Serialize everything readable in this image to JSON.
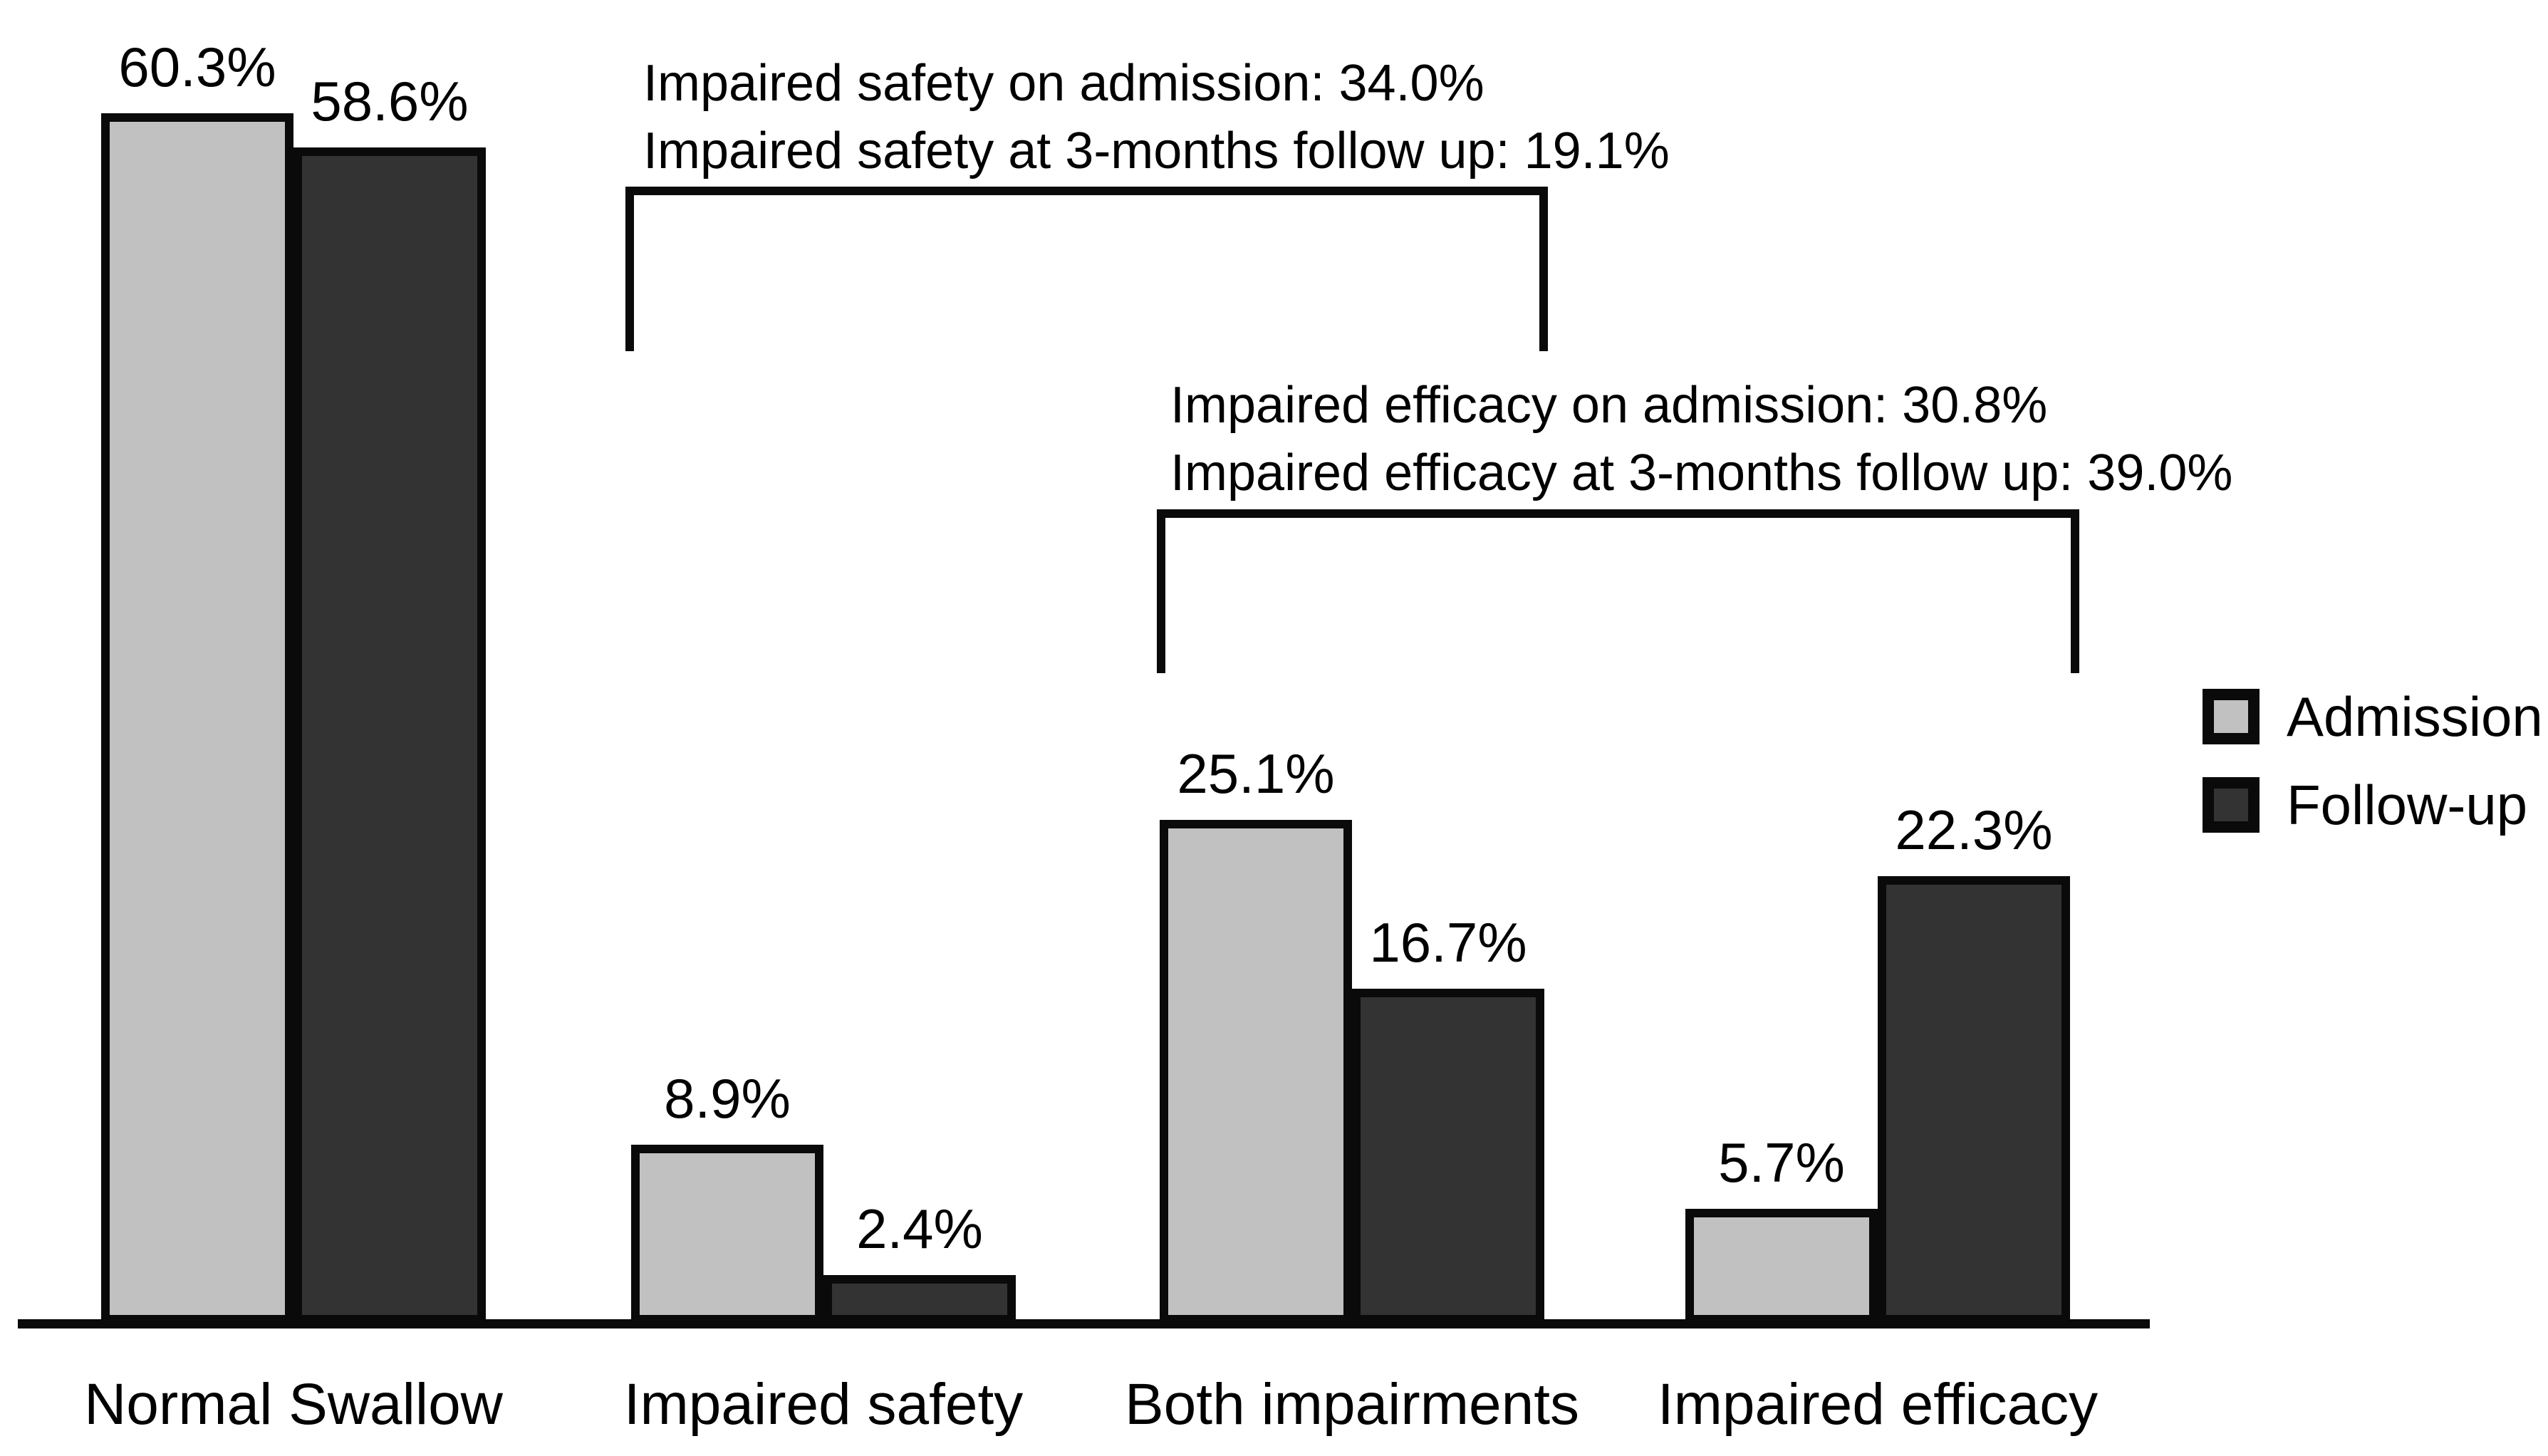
{
  "chart_data": {
    "type": "bar",
    "title": "",
    "xlabel": "",
    "ylabel": "",
    "ylim": [
      0,
      65
    ],
    "grid": false,
    "unit": "%",
    "legend_position": "right",
    "categories": [
      "Normal Swallow",
      "Impaired safety",
      "Both impairments",
      "Impaired efficacy"
    ],
    "series": [
      {
        "name": "Admission",
        "color": "#c1c1c1",
        "values": [
          60.3,
          8.9,
          25.1,
          5.7
        ],
        "labels": [
          "60.3%",
          "8.9%",
          "25.1%",
          "5.7%"
        ]
      },
      {
        "name": "Follow-up",
        "color": "#333333",
        "values": [
          58.6,
          2.4,
          16.7,
          22.3
        ],
        "labels": [
          "58.6%",
          "2.4%",
          "16.7%",
          "22.3%"
        ]
      }
    ],
    "annotations": [
      {
        "lines": [
          "Impaired safety on admission: 34.0%",
          "Impaired safety at 3-months follow up: 19.1%"
        ],
        "bracket_spans": [
          "Impaired safety",
          "Both impairments"
        ]
      },
      {
        "lines": [
          "Impaired efficacy on admission: 30.8%",
          "Impaired efficacy at 3-months follow up: 39.0%"
        ],
        "bracket_spans": [
          "Both impairments",
          "Impaired efficacy"
        ]
      }
    ]
  },
  "colors": {
    "admission": "#c1c1c1",
    "followup": "#333333",
    "stroke": "#0a0a0a",
    "background": "#ffffff",
    "text": "#000000"
  }
}
